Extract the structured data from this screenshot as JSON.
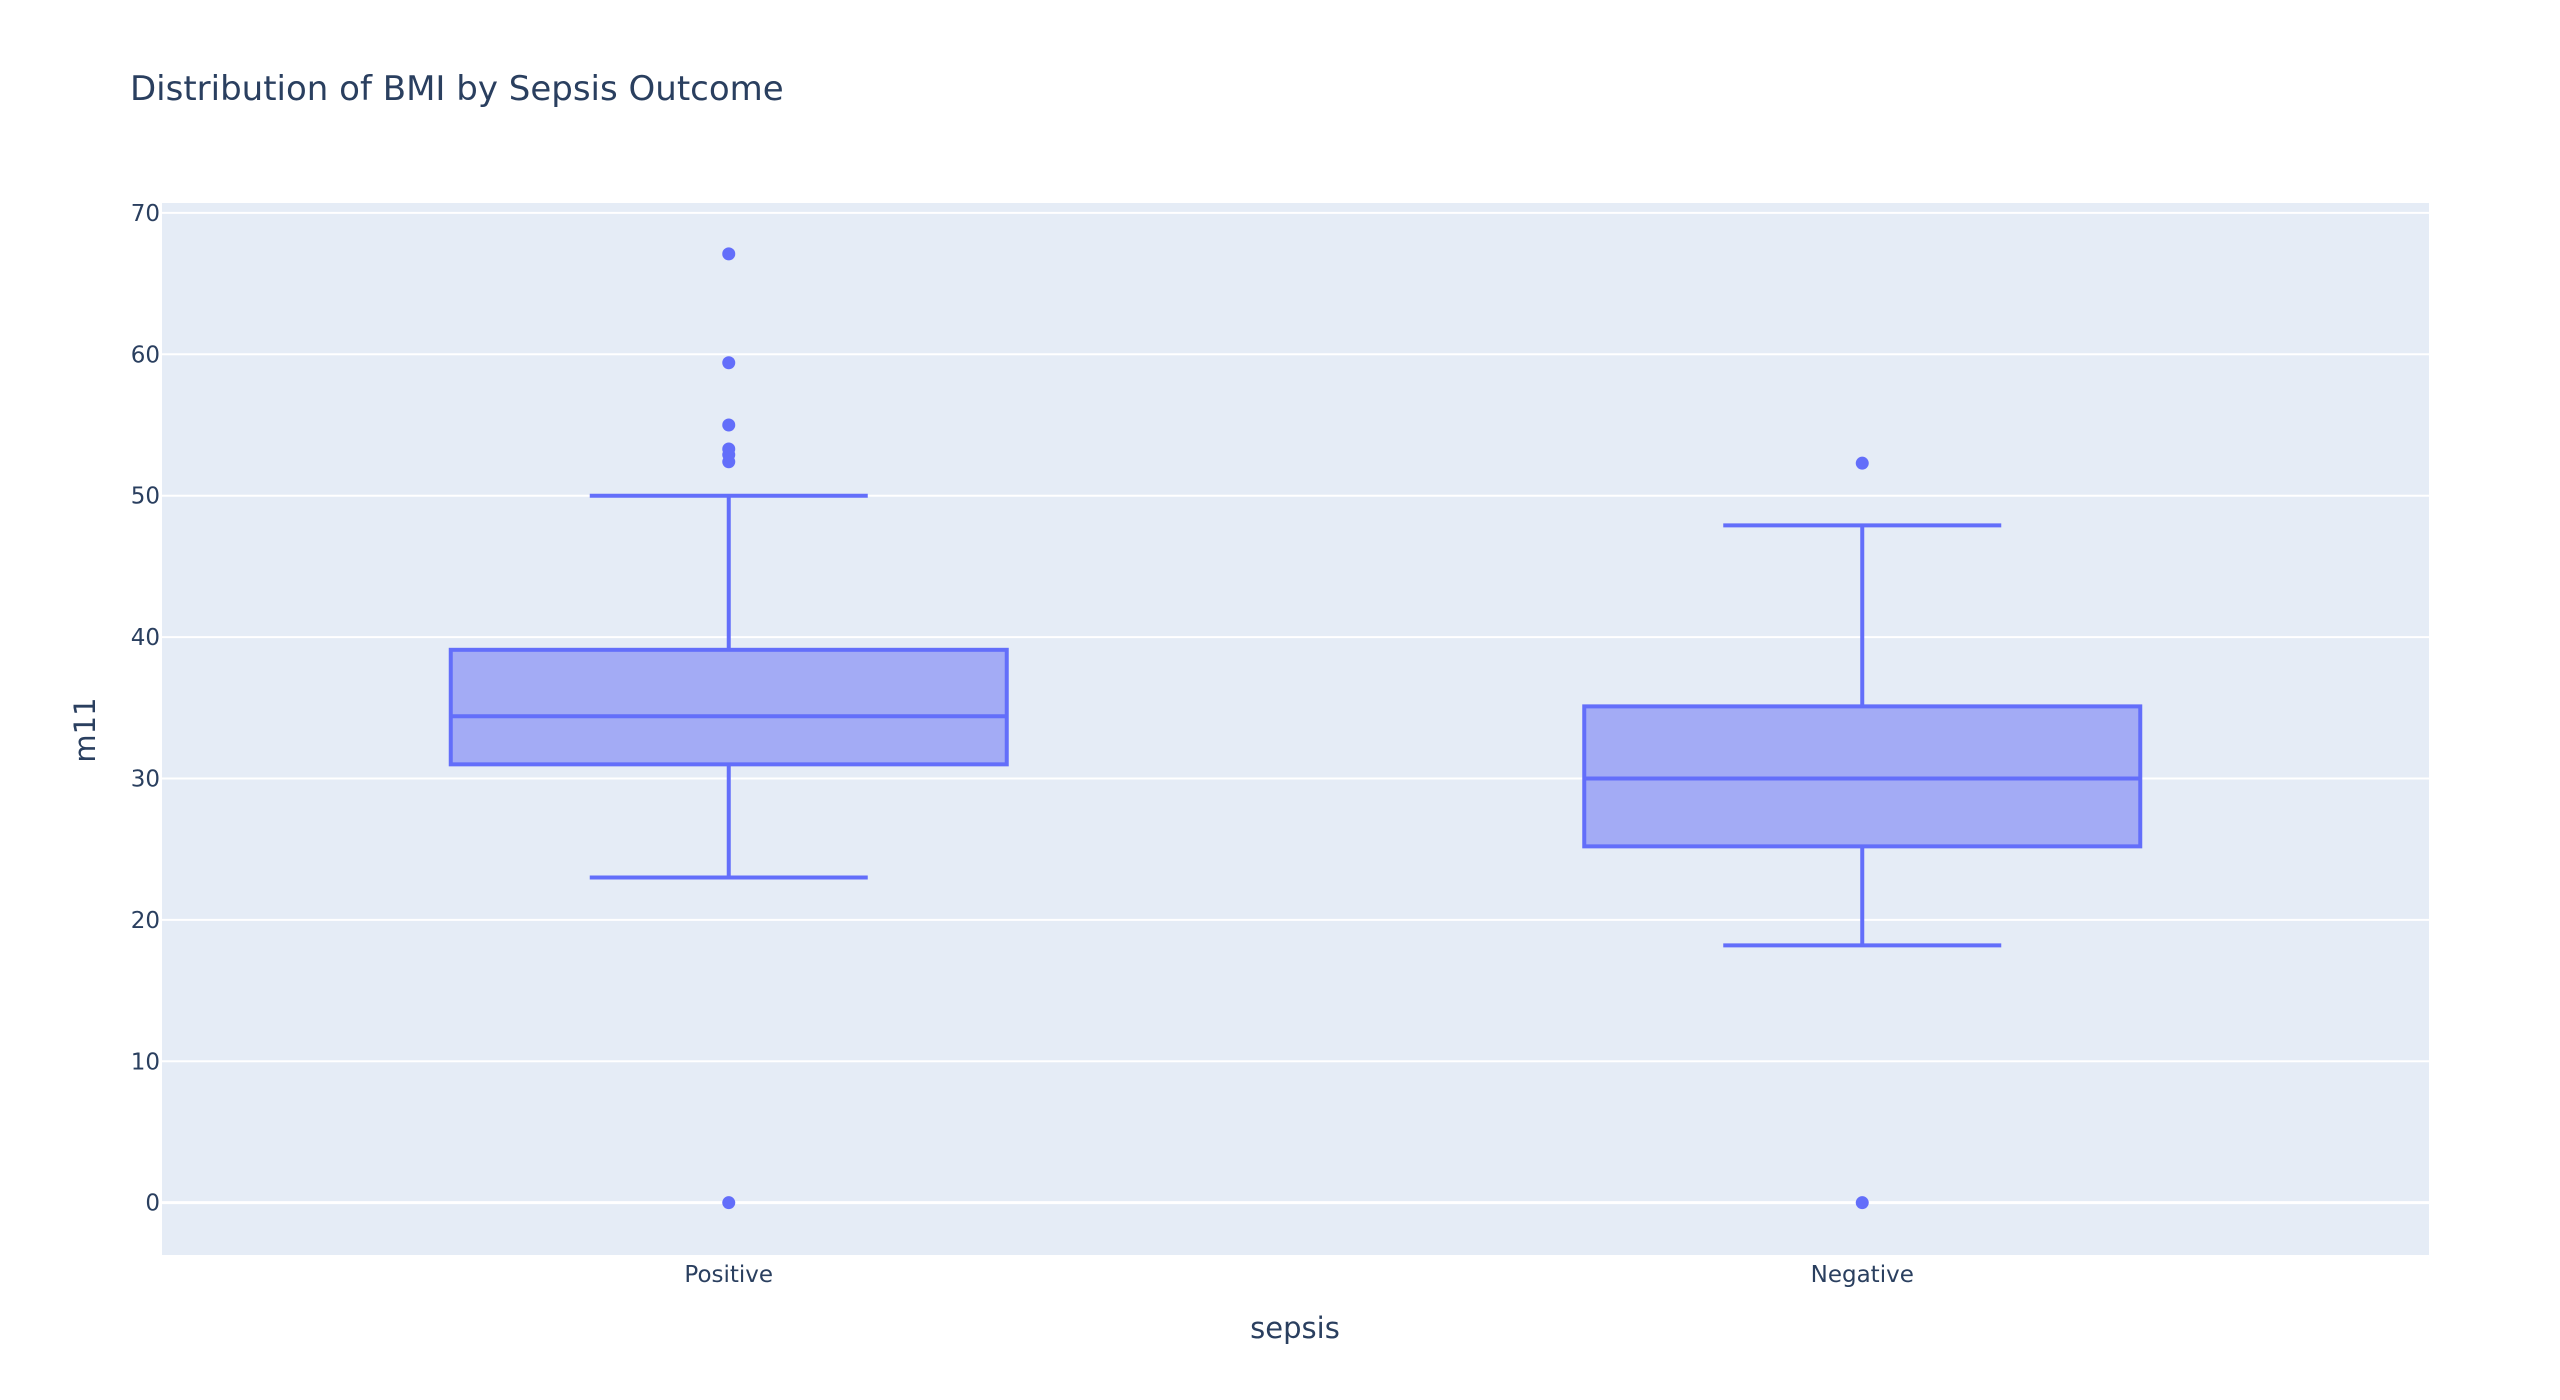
{
  "chart_data": {
    "type": "box",
    "title": "Distribution of BMI by Sepsis Outcome",
    "xlabel": "sepsis",
    "ylabel": "m11",
    "categories": [
      "Positive",
      "Negative"
    ],
    "ylim": [
      -3.7,
      70.7
    ],
    "yticks": [
      0,
      10,
      20,
      30,
      40,
      50,
      60,
      70
    ],
    "grid": true,
    "legend": "none",
    "colors": {
      "box_fill": "#a3abf5",
      "box_line": "#636efa",
      "plot_bg": "#e5ecf6",
      "grid": "#ffffff",
      "text": "#2a3f5f"
    },
    "boxes": [
      {
        "category": "Positive",
        "lower_fence": 23,
        "q1": 31,
        "median": 34.4,
        "q3": 39.1,
        "upper_fence": 50,
        "outliers": [
          0,
          52.4,
          52.9,
          53.3,
          55,
          59.4,
          67.1
        ]
      },
      {
        "category": "Negative",
        "lower_fence": 18.2,
        "q1": 25.2,
        "median": 30,
        "q3": 35.1,
        "upper_fence": 47.9,
        "outliers": [
          0,
          52.3
        ]
      }
    ]
  }
}
